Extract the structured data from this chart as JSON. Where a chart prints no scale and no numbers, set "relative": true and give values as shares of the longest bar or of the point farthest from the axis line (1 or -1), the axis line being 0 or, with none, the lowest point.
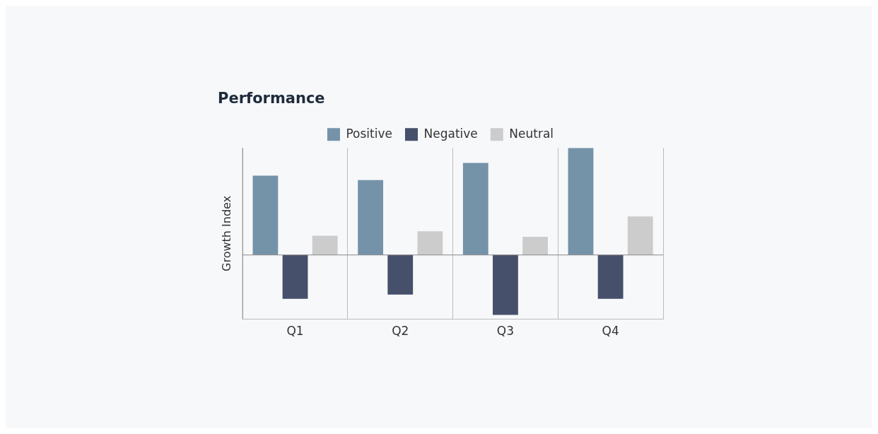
{
  "chart_data": {
    "type": "bar",
    "title": "Performance",
    "ylabel": "Growth Index",
    "categories": [
      "Q1",
      "Q2",
      "Q3",
      "Q4"
    ],
    "relative": true,
    "series": [
      {
        "name": "Positive",
        "color": "#7593a8",
        "values": [
          0.74,
          0.7,
          0.86,
          1
        ]
      },
      {
        "name": "Negative",
        "color": "#46506a",
        "values": [
          -0.41,
          -0.37,
          -0.56,
          -0.41
        ]
      },
      {
        "name": "Neutral",
        "color": "#cccccc",
        "values": [
          0.18,
          0.22,
          0.17,
          0.36
        ]
      }
    ],
    "grid": "x",
    "legend": "top"
  }
}
